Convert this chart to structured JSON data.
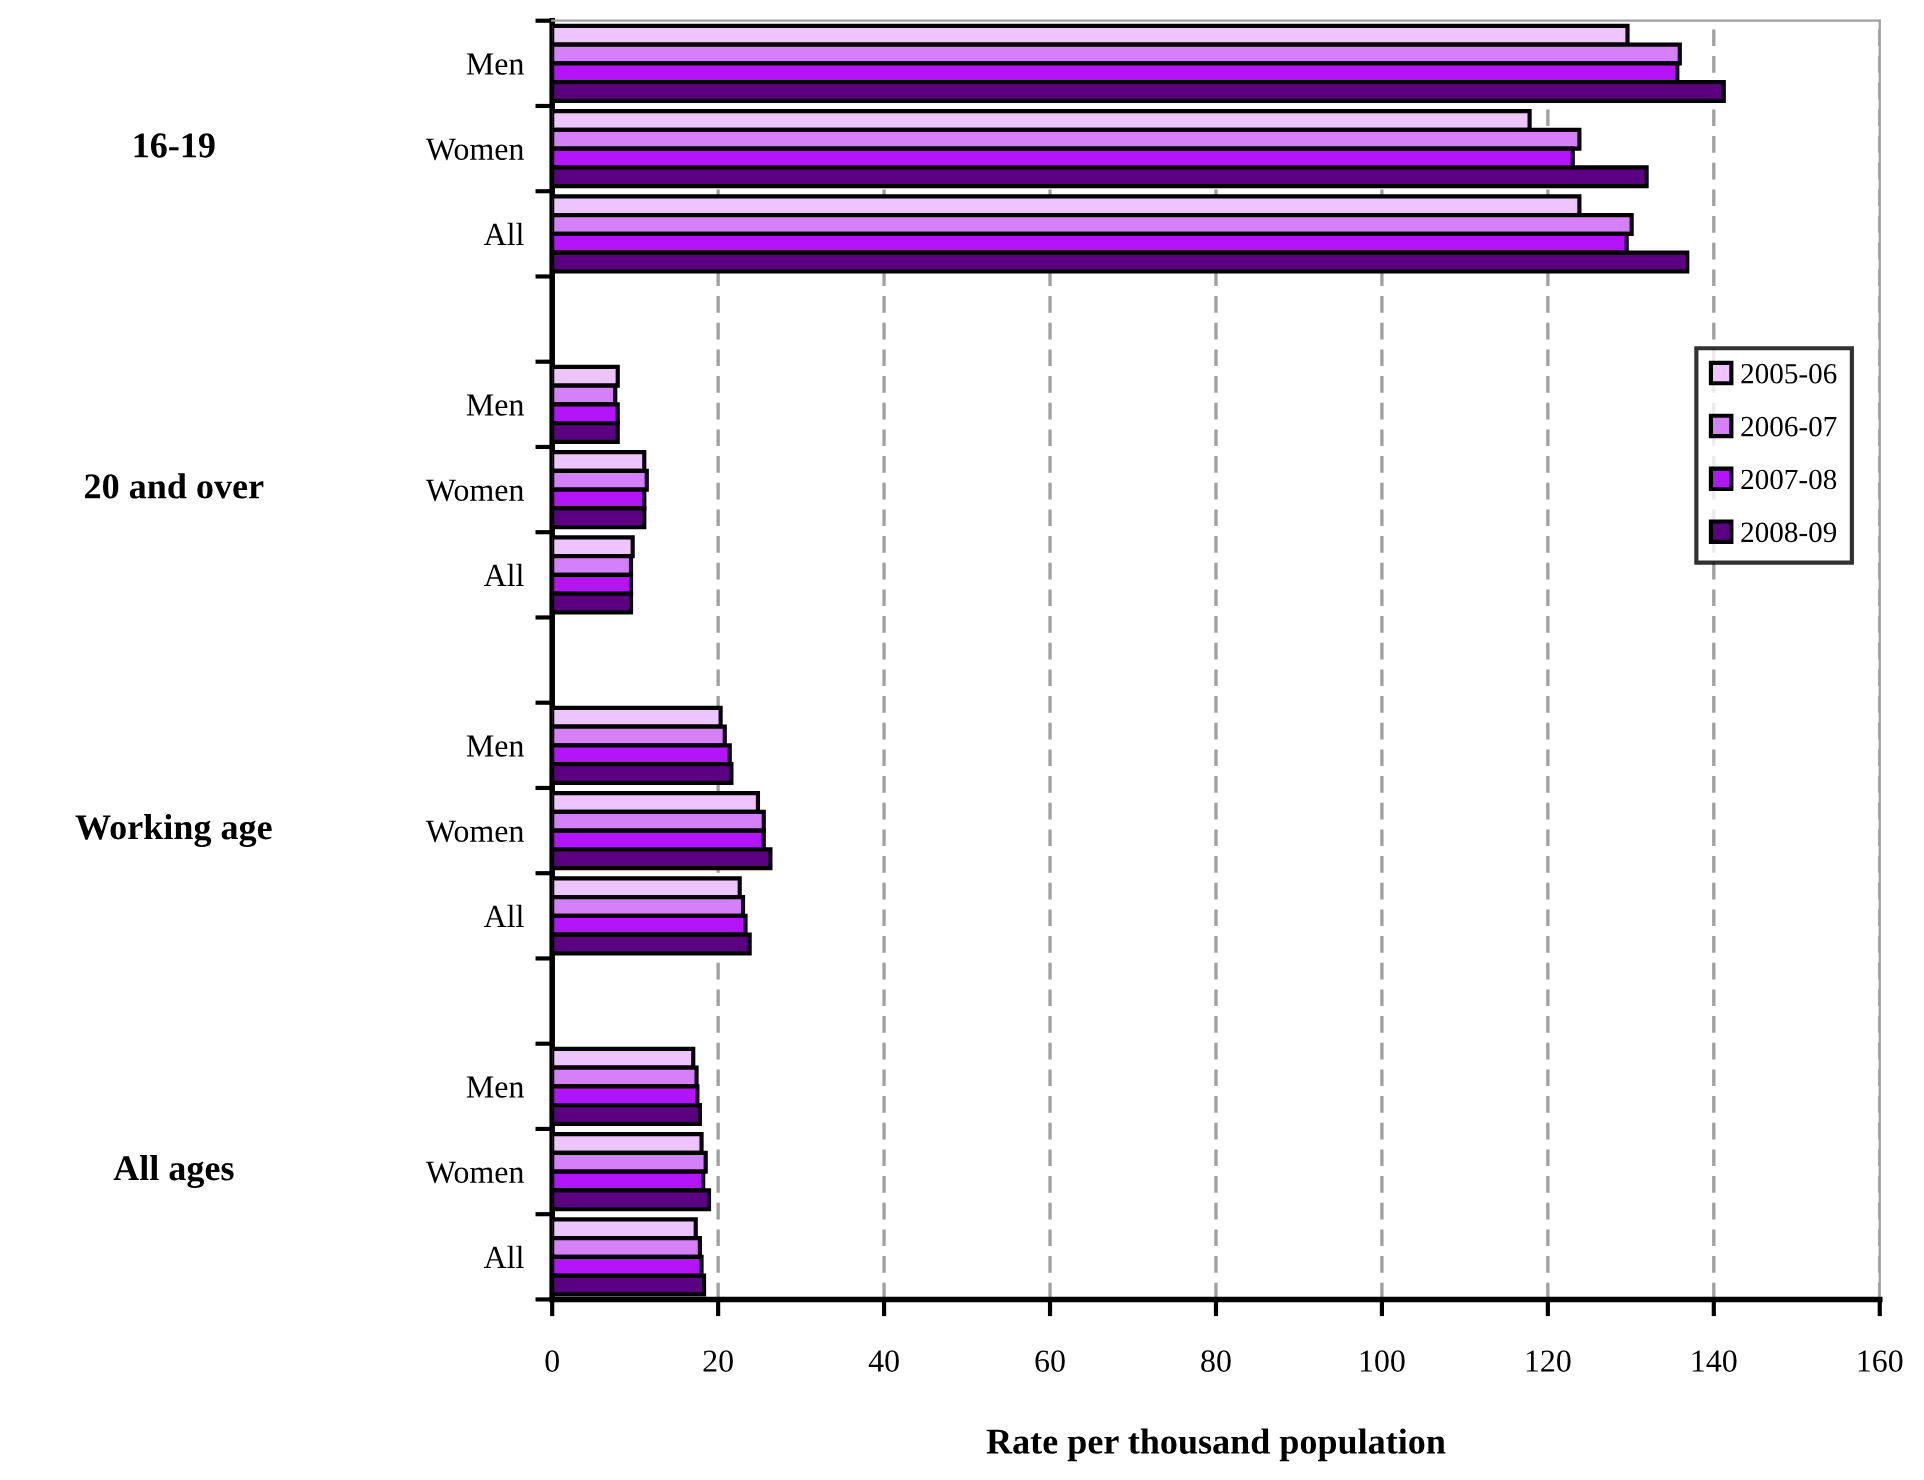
{
  "chart_data": {
    "type": "bar",
    "orientation": "horizontal",
    "xlabel": "Rate per thousand population",
    "categories": [
      "Men",
      "Women",
      "All",
      null,
      "Men",
      "Women",
      "All",
      null,
      "Men",
      "Women",
      "All",
      null,
      "Men",
      "Women",
      "All"
    ],
    "annotations": [
      "16-19",
      "20 and over",
      "Working age",
      "All ages"
    ],
    "series": [
      {
        "name": "2005-06",
        "color": "#eec4fe",
        "values": [
          129.6,
          117.8,
          123.8,
          null,
          7.9,
          11.1,
          9.7,
          null,
          20.3,
          24.8,
          22.6,
          null,
          17.0,
          18.0,
          17.3
        ]
      },
      {
        "name": "2006-07",
        "color": "#d580f8",
        "values": [
          135.9,
          123.8,
          130.1,
          null,
          7.6,
          11.4,
          9.5,
          null,
          20.8,
          25.5,
          23.0,
          null,
          17.4,
          18.5,
          17.8
        ]
      },
      {
        "name": "2007-08",
        "color": "#b414fa",
        "values": [
          135.6,
          123.0,
          129.5,
          null,
          7.9,
          11.1,
          9.5,
          null,
          21.4,
          25.5,
          23.3,
          null,
          17.5,
          18.2,
          18.0
        ]
      },
      {
        "name": "2008-09",
        "color": "#5c0082",
        "values": [
          141.2,
          131.9,
          136.8,
          null,
          7.9,
          11.1,
          9.5,
          null,
          21.6,
          26.3,
          23.8,
          null,
          17.8,
          18.9,
          18.3
        ]
      }
    ],
    "xlim": [
      0,
      160
    ],
    "xticks": [
      0,
      20,
      40,
      60,
      80,
      100,
      120,
      140,
      160
    ],
    "grid": "x",
    "legend": "right"
  }
}
